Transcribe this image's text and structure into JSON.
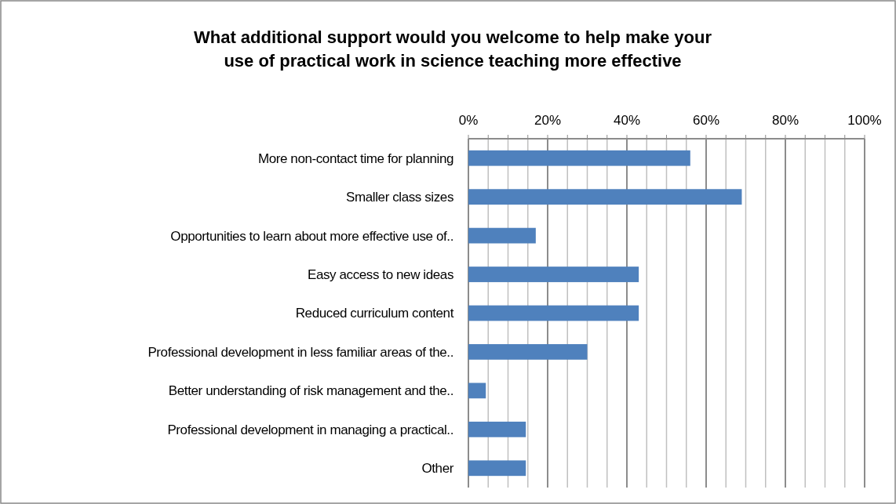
{
  "chart_data": {
    "type": "bar",
    "orientation": "horizontal",
    "title": "What additional support would you welcome to help make your\nuse of practical work in science teaching more effective",
    "categories": [
      "More non-contact time for planning",
      "Smaller class sizes",
      "Opportunities to learn about more effective use of..",
      "Easy access to new ideas",
      "Reduced curriculum content",
      "Professional development in less familiar areas of the..",
      "Better understanding of risk management and the..",
      "Professional development in managing a practical..",
      "Other"
    ],
    "values": [
      56,
      69,
      17,
      43,
      43,
      30,
      4.4,
      14.5,
      14.5
    ],
    "color": "#4f81bd",
    "xlim": [
      0,
      100
    ],
    "xticks": [
      {
        "value": 0,
        "label": "0%"
      },
      {
        "value": 5,
        "label": null
      },
      {
        "value": 10,
        "label": null
      },
      {
        "value": 15,
        "label": null
      },
      {
        "value": 20,
        "label": "20%"
      },
      {
        "value": 25,
        "label": null
      },
      {
        "value": 30,
        "label": null
      },
      {
        "value": 35,
        "label": null
      },
      {
        "value": 40,
        "label": "40%"
      },
      {
        "value": 45,
        "label": null
      },
      {
        "value": 50,
        "label": null
      },
      {
        "value": 55,
        "label": null
      },
      {
        "value": 60,
        "label": "60%"
      },
      {
        "value": 65,
        "label": null
      },
      {
        "value": 70,
        "label": null
      },
      {
        "value": 75,
        "label": null
      },
      {
        "value": 80,
        "label": "80%"
      },
      {
        "value": 85,
        "label": null
      },
      {
        "value": 90,
        "label": null
      },
      {
        "value": 95,
        "label": null
      },
      {
        "value": 100,
        "label": "100%"
      }
    ],
    "grid": "x"
  }
}
